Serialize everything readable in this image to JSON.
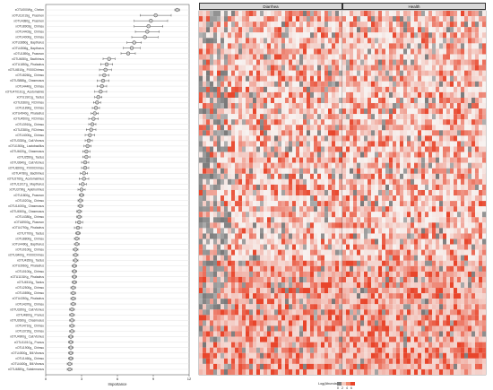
{
  "chart_data": [
    {
      "type": "scatter",
      "description_kind": "importance_dotplot_with_error_bars",
      "xlabel": "Importance",
      "xlim": [
        0,
        12
      ],
      "x_ticks": [
        "0",
        "3",
        "6",
        "9",
        "12"
      ],
      "grid": true,
      "points": [
        {
          "label": "xOTU000Wg_ Chelon",
          "value": 11.0,
          "err": 0.2
        },
        {
          "label": "xOTU1101Sg_ Prasmon",
          "value": 9.2,
          "err": 1.3
        },
        {
          "label": "xOTU4380g_ Prasmon",
          "value": 8.8,
          "err": 1.4
        },
        {
          "label": "xOTU8903g_ Chimsu",
          "value": 8.6,
          "err": 1.2
        },
        {
          "label": "xOTU4403g_ Chimsu",
          "value": 8.5,
          "err": 1.0
        },
        {
          "label": "xOTU4000g_ Chimsu",
          "value": 8.3,
          "err": 1.1
        },
        {
          "label": "xOTU3860g_ Bapthorus",
          "value": 7.4,
          "err": 0.6
        },
        {
          "label": "xOTU4506g_ Bapthorus",
          "value": 7.2,
          "err": 0.7
        },
        {
          "label": "xOTU1890g_ Prasmon",
          "value": 6.9,
          "err": 0.6
        },
        {
          "label": "xOTU4650g_ Bacthimus",
          "value": 5.3,
          "err": 0.5
        },
        {
          "label": "xOTU1850g_ Phaladrus",
          "value": 5.1,
          "err": 0.5
        },
        {
          "label": "xOTU4510g_ P.000Chimsu",
          "value": 5.0,
          "err": 0.5
        },
        {
          "label": "xOTU8260g_ Chimsu",
          "value": 4.9,
          "err": 0.4
        },
        {
          "label": "xOTU3888g_ Chasmusus",
          "value": 4.8,
          "err": 0.5
        },
        {
          "label": "xOTU4440g_ Chimsu",
          "value": 4.7,
          "err": 0.4
        },
        {
          "label": "xOTU4701S1g_ Acetomalinis",
          "value": 4.6,
          "err": 0.5
        },
        {
          "label": "xOTU1S01g_ Tactus",
          "value": 4.4,
          "err": 0.3
        },
        {
          "label": "xOTU3360g_ RChimsu",
          "value": 4.3,
          "err": 0.3
        },
        {
          "label": "xOTU1890g_ Chimsu",
          "value": 4.2,
          "err": 0.3
        },
        {
          "label": "xOTU4940g_ Phaladrus",
          "value": 4.1,
          "err": 0.3
        },
        {
          "label": "xOTU4500g_ RChimsu",
          "value": 4.0,
          "err": 0.4
        },
        {
          "label": "xOTU3910g_ Chimsu",
          "value": 3.9,
          "err": 0.3
        },
        {
          "label": "xOTU2380g_ RChimsu",
          "value": 3.8,
          "err": 0.4
        },
        {
          "label": "xOTU4000g_ Chimsu",
          "value": 3.7,
          "err": 0.4
        },
        {
          "label": "xOTU3330g_ Call.Vismus",
          "value": 3.6,
          "err": 0.3
        },
        {
          "label": "xOTU1500g_ Lactobacillus",
          "value": 3.5,
          "err": 0.3
        },
        {
          "label": "xOTU4620g_ Chasmusus",
          "value": 3.4,
          "err": 0.3
        },
        {
          "label": "xOTU2550g_ Tactus",
          "value": 3.4,
          "err": 0.3
        },
        {
          "label": "xOTU3640g_ Call.Vismus",
          "value": 3.3,
          "err": 0.3
        },
        {
          "label": "xOTU8200g_ P.000Chimsu",
          "value": 3.3,
          "err": 0.3
        },
        {
          "label": "xOTU4780g_ Bacthimus",
          "value": 3.2,
          "err": 0.3
        },
        {
          "label": "xOTU2760g_ Acetomalimus",
          "value": 3.2,
          "err": 0.4
        },
        {
          "label": "xOTU1101Tg_ Mapthorus",
          "value": 3.1,
          "err": 0.3
        },
        {
          "label": "xOTU3790g_ Aplohorimus",
          "value": 3.0,
          "err": 0.3
        },
        {
          "label": "xOTU1800g_ Prasmon",
          "value": 3.0,
          "err": 0.2
        },
        {
          "label": "xOTU0201g_ Chimsu",
          "value": 2.9,
          "err": 0.2
        },
        {
          "label": "xOTU14000g_ Chasmusus",
          "value": 2.9,
          "err": 0.2
        },
        {
          "label": "xOTU4500g_ Chasmusus",
          "value": 2.8,
          "err": 0.2
        },
        {
          "label": "xOTU4380g_ Chimsu",
          "value": 2.8,
          "err": 0.2
        },
        {
          "label": "xOTU8900g_ Plasmon",
          "value": 2.8,
          "err": 0.3
        },
        {
          "label": "xOTU4790g_ Phaladrus",
          "value": 2.7,
          "err": 0.3
        },
        {
          "label": "xOTU7700g_ Tactus",
          "value": 2.7,
          "err": 0.2
        },
        {
          "label": "xOTU8800g_ Chimsu",
          "value": 2.6,
          "err": 0.2
        },
        {
          "label": "xOTU4490g_ Bapthorus",
          "value": 2.6,
          "err": 0.2
        },
        {
          "label": "xOTU0100g_ Chimsu",
          "value": 2.5,
          "err": 0.2
        },
        {
          "label": "xOTU3400g_ P.000Chimsu",
          "value": 2.5,
          "err": 0.2
        },
        {
          "label": "xOTU4350g_ Tactus",
          "value": 2.5,
          "err": 0.2
        },
        {
          "label": "xOTU3960g_ Phaladrus",
          "value": 2.4,
          "err": 0.2
        },
        {
          "label": "xOTU0100g_ Chimsu",
          "value": 2.4,
          "err": 0.2
        },
        {
          "label": "xOTU1101Kg_ Phaladrus",
          "value": 2.4,
          "err": 0.2
        },
        {
          "label": "xOTU4510g_ Tactus",
          "value": 2.4,
          "err": 0.2
        },
        {
          "label": "xOTU2500g_ Chimsu",
          "value": 2.3,
          "err": 0.2
        },
        {
          "label": "xOTU0890g_ Chimsu",
          "value": 2.3,
          "err": 0.2
        },
        {
          "label": "xOTU4350g_ Phaladrus",
          "value": 2.3,
          "err": 0.2
        },
        {
          "label": "xOTU4370g_ Chimsu",
          "value": 2.3,
          "err": 0.2
        },
        {
          "label": "xOTU3200g_ Call.Vismus",
          "value": 2.2,
          "err": 0.2
        },
        {
          "label": "xOTU4800g_ Prunus",
          "value": 2.2,
          "err": 0.2
        },
        {
          "label": "xOTU2660g_ Chasmusus",
          "value": 2.2,
          "err": 0.2
        },
        {
          "label": "xOTU4710g_ Chimsu",
          "value": 2.2,
          "err": 0.2
        },
        {
          "label": "xOTU3720g_ Chimsu",
          "value": 2.2,
          "err": 0.2
        },
        {
          "label": "xOTU4900g_ Call.Vismus",
          "value": 2.1,
          "err": 0.2
        },
        {
          "label": "xOTU1101Cg_ Prunus",
          "value": 2.1,
          "err": 0.2
        },
        {
          "label": "xOTU1900g_ Chimsu",
          "value": 2.1,
          "err": 0.2
        },
        {
          "label": "xOTU4500g_ Bill.Vismus",
          "value": 2.1,
          "err": 0.2
        },
        {
          "label": "xOTU1460g_ Chimsu",
          "value": 2.1,
          "err": 0.2
        },
        {
          "label": "xOTU4400g_ Bill.Vismus",
          "value": 2.0,
          "err": 0.2
        },
        {
          "label": "xOTU4880g_ Subdemonus",
          "value": 2.0,
          "err": 0.2
        }
      ]
    },
    {
      "type": "heatmap",
      "panels": [
        "Diarrhea",
        "Health"
      ],
      "color_scale": {
        "title": "Log(Abundance)",
        "ticks": [
          "0",
          "2",
          "4",
          "6"
        ],
        "low": "#f7f7f7",
        "high": "#e8452b",
        "zero": "#7f7f7f"
      },
      "columns_per_panel": 40,
      "rows": 67
    }
  ]
}
